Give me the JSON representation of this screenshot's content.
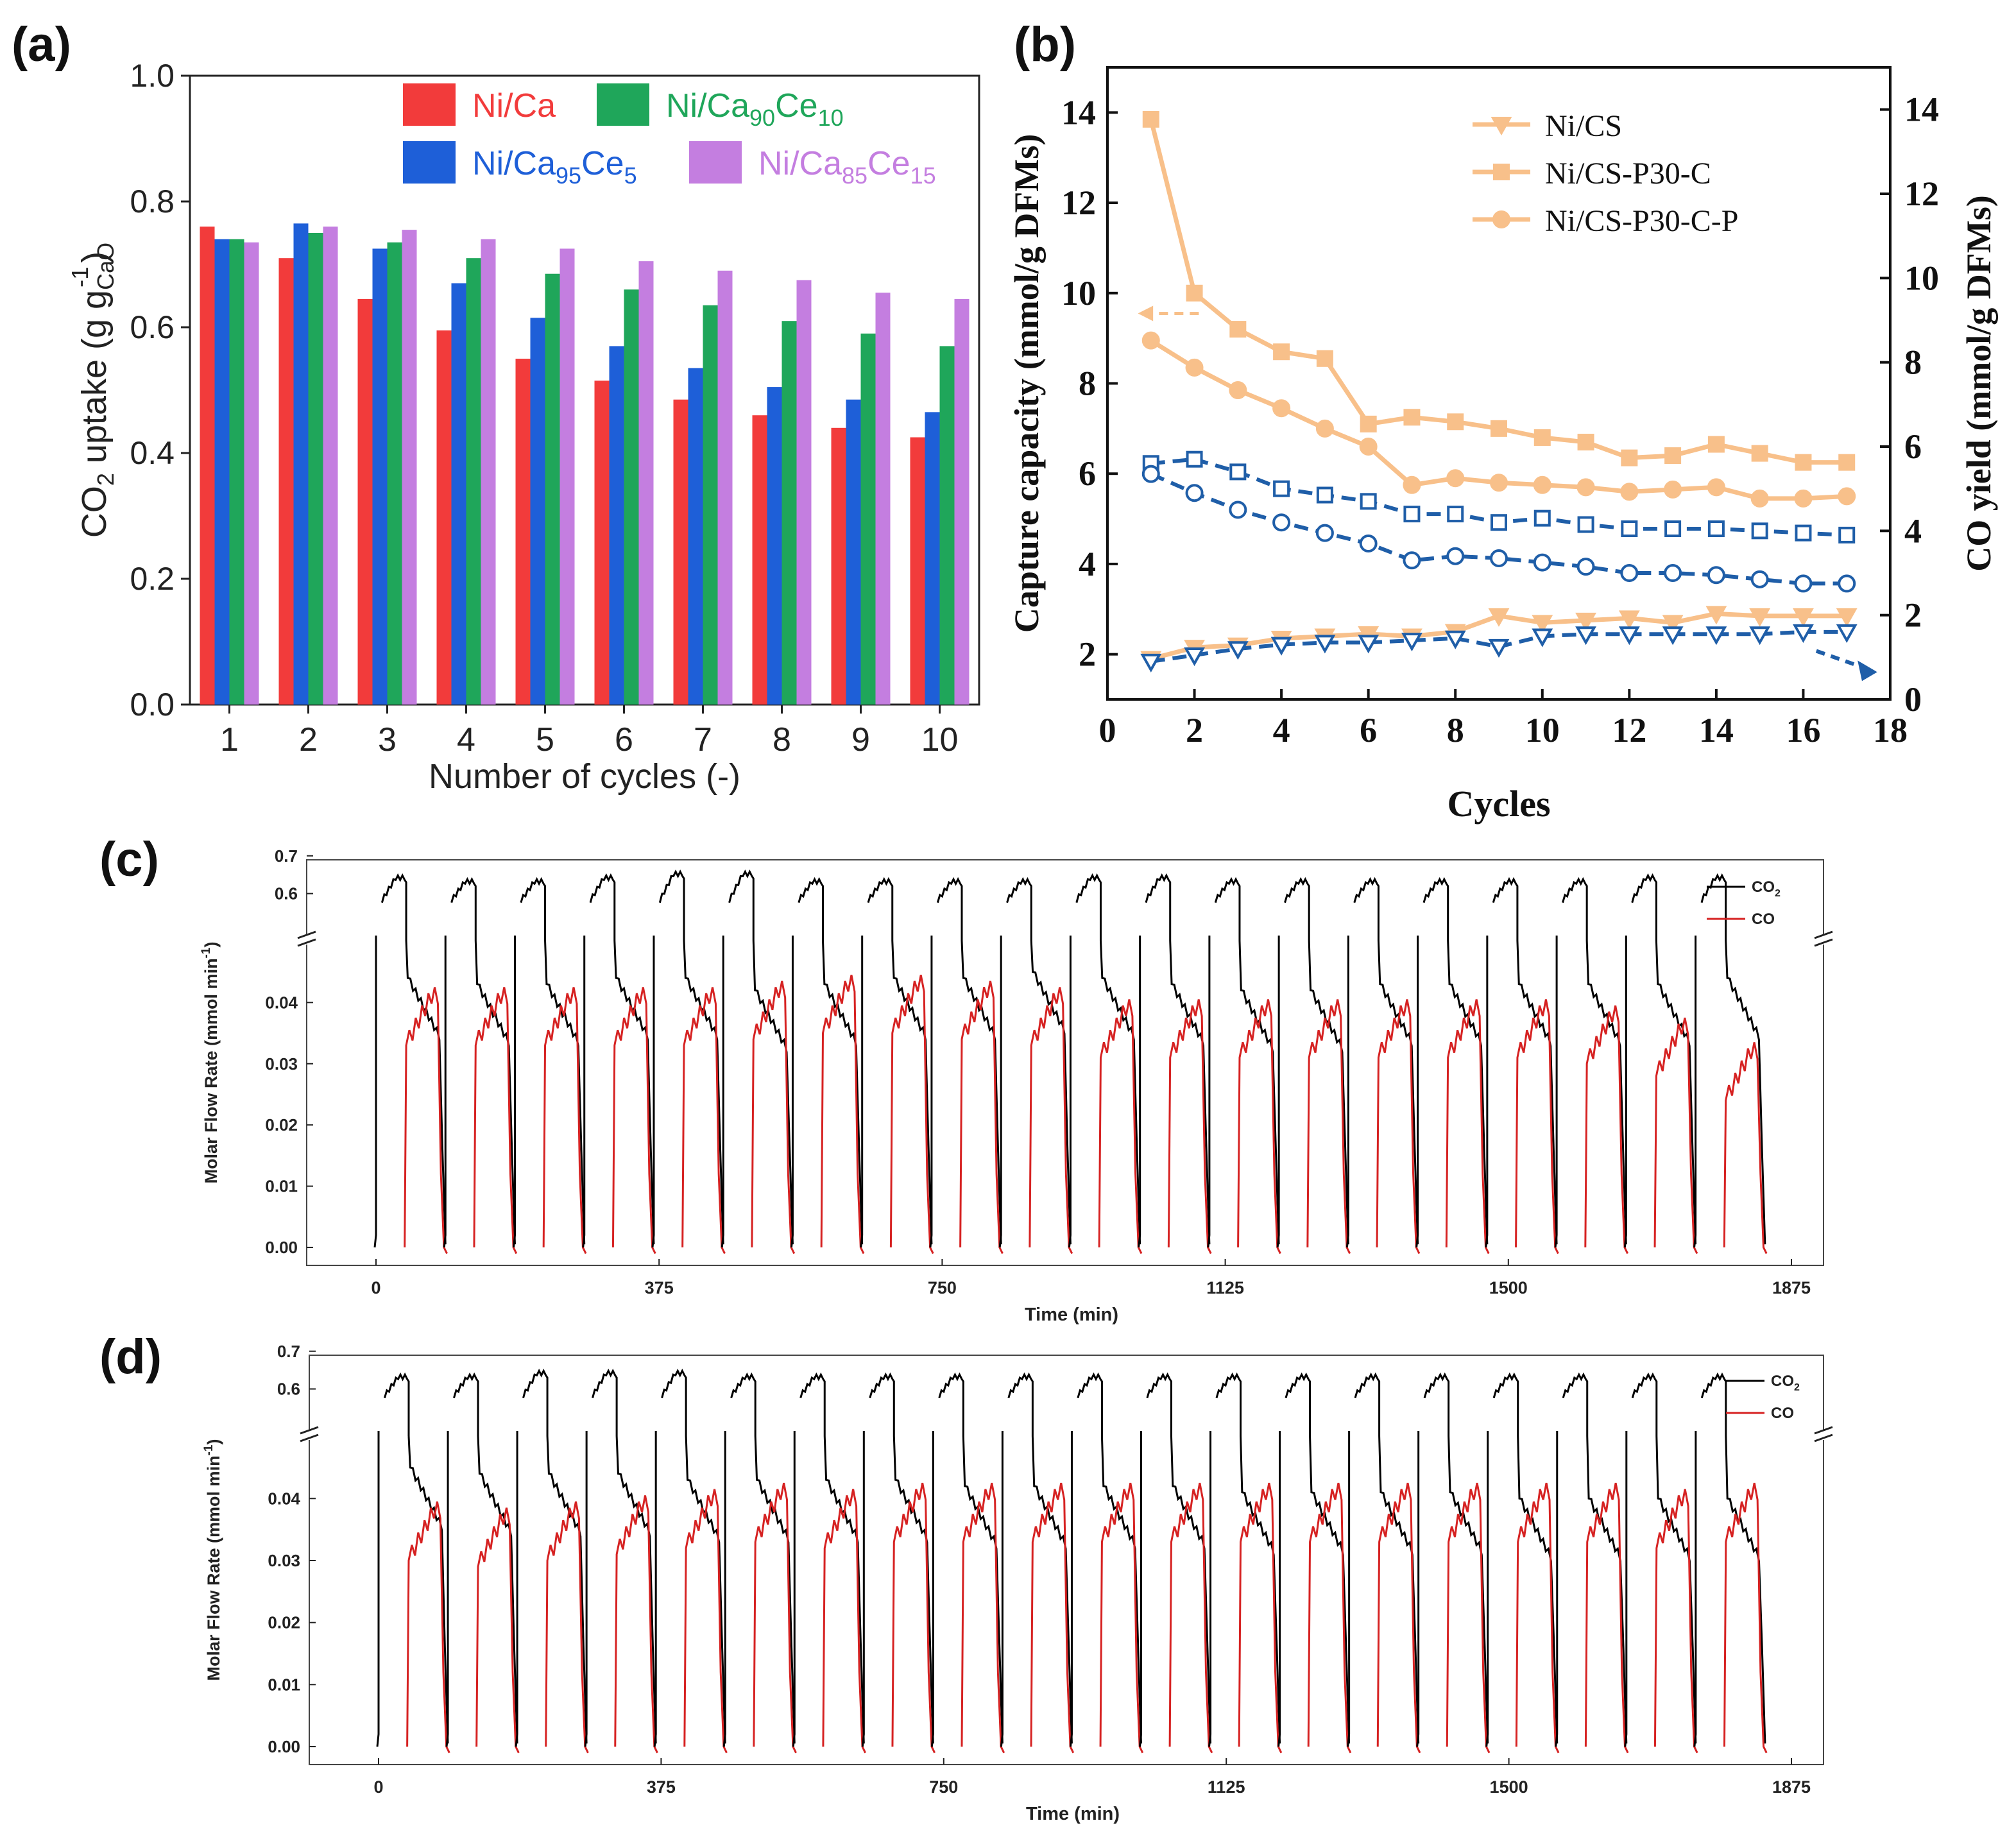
{
  "figure": {
    "panel_labels": [
      "(a)",
      "(b)",
      "(c)",
      "(d)"
    ]
  },
  "colors": {
    "ni_ca": "#f23b3b",
    "ni_ca95ce5": "#1e5fd8",
    "ni_ca90ce10": "#1fa65a",
    "ni_ca85ce15": "#c47ee0",
    "orange": "#f8c08a",
    "blue": "#1f5ea8",
    "co2_line": "#000000",
    "co_line": "#d62222"
  },
  "chart_data": [
    {
      "panel": "(a)",
      "type": "bar",
      "title": "",
      "xlabel": "Number of cycles (-)",
      "ylabel": "CO2 uptake (g g-1 CaO)",
      "ylim": [
        0.0,
        1.0
      ],
      "yticks": [
        "0.0",
        "0.2",
        "0.4",
        "0.6",
        "0.8",
        "1.0"
      ],
      "categories": [
        "1",
        "2",
        "3",
        "4",
        "5",
        "6",
        "7",
        "8",
        "9",
        "10"
      ],
      "legend_position": "top",
      "series": [
        {
          "name": "Ni/Ca",
          "color_key": "ni_ca",
          "values": [
            0.76,
            0.71,
            0.645,
            0.595,
            0.55,
            0.515,
            0.485,
            0.46,
            0.44,
            0.425
          ]
        },
        {
          "name": "Ni/Ca95Ce5",
          "color_key": "ni_ca95ce5",
          "values": [
            0.74,
            0.765,
            0.725,
            0.67,
            0.615,
            0.57,
            0.535,
            0.505,
            0.485,
            0.465
          ]
        },
        {
          "name": "Ni/Ca90Ce10",
          "color_key": "ni_ca90ce10",
          "values": [
            0.74,
            0.75,
            0.735,
            0.71,
            0.685,
            0.66,
            0.635,
            0.61,
            0.59,
            0.57
          ]
        },
        {
          "name": "Ni/Ca85Ce15",
          "color_key": "ni_ca85ce15",
          "values": [
            0.735,
            0.76,
            0.755,
            0.74,
            0.725,
            0.705,
            0.69,
            0.675,
            0.655,
            0.645
          ]
        }
      ],
      "legend": [
        {
          "main": "Ni/Ca",
          "sub": "",
          "tail": "",
          "sub2": "",
          "color_key": "ni_ca"
        },
        {
          "main": "Ni/Ca",
          "sub": "90",
          "tail": "Ce",
          "sub2": "10",
          "color_key": "ni_ca90ce10"
        },
        {
          "main": "Ni/Ca",
          "sub": "95",
          "tail": "Ce",
          "sub2": "5",
          "color_key": "ni_ca95ce5"
        },
        {
          "main": "Ni/Ca",
          "sub": "85",
          "tail": "Ce",
          "sub2": "15",
          "color_key": "ni_ca85ce15"
        }
      ]
    },
    {
      "panel": "(b)",
      "type": "line",
      "title": "",
      "xlabel": "Cycles",
      "ylabel_left": "Capture capacity (mmol/g DFMs)",
      "ylabel_right": "CO yield (mmol/g DFMs)",
      "xlim": [
        0,
        18
      ],
      "ylim_left": [
        1,
        15
      ],
      "ylim_right": [
        0,
        15
      ],
      "xticks": [
        "0",
        "2",
        "4",
        "6",
        "8",
        "10",
        "12",
        "14",
        "16",
        "18"
      ],
      "yticks_left": [
        "2",
        "4",
        "6",
        "8",
        "10",
        "12",
        "14"
      ],
      "yticks_right": [
        "0",
        "2",
        "4",
        "6",
        "8",
        "10",
        "12",
        "14"
      ],
      "legend_position": "top-right",
      "x": [
        1,
        2,
        3,
        4,
        5,
        6,
        7,
        8,
        9,
        10,
        11,
        12,
        13,
        14,
        15,
        16,
        17
      ],
      "series": [
        {
          "name": "Ni/CS",
          "axis": "left",
          "marker": "triangle-down",
          "filled": true,
          "color_key": "orange",
          "dashed": false,
          "values": [
            1.9,
            2.15,
            2.2,
            2.35,
            2.4,
            2.45,
            2.4,
            2.5,
            2.85,
            2.7,
            2.75,
            2.8,
            2.7,
            2.9,
            2.85,
            2.85,
            2.85
          ]
        },
        {
          "name": "Ni/CS-P30-C",
          "axis": "left",
          "marker": "square",
          "filled": true,
          "color_key": "orange",
          "dashed": false,
          "values": [
            13.85,
            10.0,
            9.2,
            8.7,
            8.55,
            7.1,
            7.25,
            7.15,
            7.0,
            6.8,
            6.7,
            6.35,
            6.4,
            6.65,
            6.45,
            6.25,
            6.25
          ]
        },
        {
          "name": "Ni/CS-P30-C-P",
          "axis": "left",
          "marker": "circle",
          "filled": true,
          "color_key": "orange",
          "dashed": false,
          "values": [
            8.95,
            8.35,
            7.85,
            7.45,
            7.0,
            6.6,
            5.75,
            5.9,
            5.8,
            5.75,
            5.7,
            5.6,
            5.65,
            5.7,
            5.45,
            5.45,
            5.5
          ]
        },
        {
          "name": "Ni/CS CO yield",
          "axis": "right",
          "marker": "triangle-down",
          "filled": false,
          "color_key": "blue",
          "dashed": true,
          "values": [
            0.9,
            1.05,
            1.2,
            1.3,
            1.35,
            1.35,
            1.4,
            1.45,
            1.25,
            1.5,
            1.55,
            1.55,
            1.55,
            1.55,
            1.55,
            1.6,
            1.6
          ]
        },
        {
          "name": "Ni/CS-P30-C CO yield",
          "axis": "right",
          "marker": "square",
          "filled": false,
          "color_key": "blue",
          "dashed": true,
          "values": [
            5.6,
            5.7,
            5.4,
            5.0,
            4.85,
            4.7,
            4.4,
            4.4,
            4.2,
            4.3,
            4.15,
            4.05,
            4.05,
            4.05,
            4.0,
            3.95,
            3.9
          ]
        },
        {
          "name": "Ni/CS-P30-C-P CO yield",
          "axis": "right",
          "marker": "circle",
          "filled": false,
          "color_key": "blue",
          "dashed": true,
          "values": [
            5.35,
            4.9,
            4.5,
            4.2,
            3.95,
            3.7,
            3.3,
            3.4,
            3.35,
            3.25,
            3.15,
            3.0,
            3.0,
            2.95,
            2.85,
            2.75,
            2.75
          ]
        }
      ],
      "legend": [
        "Ni/CS",
        "Ni/CS-P30-C",
        "Ni/CS-P30-C-P"
      ]
    },
    {
      "panel": "(c)",
      "type": "line",
      "title": "",
      "xlabel": "Time (min)",
      "ylabel": "Molar Flow Rate (mmol min-1)",
      "xlim": [
        0,
        1875
      ],
      "xticks": [
        "0",
        "375",
        "750",
        "1125",
        "1500",
        "1875"
      ],
      "yticks_low": [
        "0.00",
        "0.01",
        "0.02",
        "0.03",
        "0.04"
      ],
      "yticks_high": [
        "0.6",
        "0.7"
      ],
      "y_break": [
        0.05,
        0.55
      ],
      "cycle_starts": [
        0,
        92,
        184,
        276,
        368,
        460,
        552,
        644,
        736,
        828,
        920,
        1012,
        1104,
        1196,
        1288,
        1380,
        1472,
        1564,
        1656,
        1748
      ],
      "legend_position": "top-right",
      "series": [
        {
          "name": "CO2",
          "color_key": "co2_line",
          "cycle_peak_values": [
            0.64,
            0.63,
            0.63,
            0.64,
            0.65,
            0.65,
            0.63,
            0.63,
            0.63,
            0.63,
            0.64,
            0.64,
            0.63,
            0.63,
            0.63,
            0.63,
            0.63,
            0.63,
            0.64,
            0.64
          ],
          "plateau_values": [
            0.044,
            0.043,
            0.043,
            0.044,
            0.044,
            0.042,
            0.043,
            0.044,
            0.044,
            0.045,
            0.044,
            0.043,
            0.042,
            0.042,
            0.043,
            0.043,
            0.043,
            0.043,
            0.043,
            0.044
          ]
        },
        {
          "name": "CO",
          "color_key": "co_line",
          "cycle_peak_values": [
            0.041,
            0.041,
            0.041,
            0.041,
            0.041,
            0.042,
            0.043,
            0.043,
            0.042,
            0.041,
            0.039,
            0.039,
            0.039,
            0.039,
            0.039,
            0.039,
            0.039,
            0.038,
            0.036,
            0.032
          ]
        }
      ],
      "legend": [
        "CO2",
        "CO"
      ]
    },
    {
      "panel": "(d)",
      "type": "line",
      "title": "",
      "xlabel": "Time (min)",
      "ylabel": "Molar Flow Rate (mmol min-1)",
      "xlim": [
        0,
        1875
      ],
      "xticks": [
        "0",
        "375",
        "750",
        "1125",
        "1500",
        "1875"
      ],
      "yticks_low": [
        "0.00",
        "0.01",
        "0.02",
        "0.03",
        "0.04"
      ],
      "yticks_high": [
        "0.6",
        "0.7"
      ],
      "y_break": [
        0.05,
        0.55
      ],
      "cycle_starts": [
        0,
        92,
        184,
        276,
        368,
        460,
        552,
        644,
        736,
        828,
        920,
        1012,
        1104,
        1196,
        1288,
        1380,
        1472,
        1564,
        1656,
        1748
      ],
      "legend_position": "top-right",
      "series": [
        {
          "name": "CO2",
          "color_key": "co2_line",
          "cycle_peak_values": [
            0.63,
            0.63,
            0.64,
            0.64,
            0.64,
            0.63,
            0.63,
            0.63,
            0.63,
            0.63,
            0.63,
            0.63,
            0.63,
            0.63,
            0.63,
            0.63,
            0.63,
            0.63,
            0.63,
            0.63
          ],
          "plateau_values": [
            0.045,
            0.044,
            0.044,
            0.044,
            0.043,
            0.043,
            0.043,
            0.043,
            0.042,
            0.042,
            0.042,
            0.042,
            0.041,
            0.041,
            0.041,
            0.041,
            0.04,
            0.04,
            0.04,
            0.04
          ]
        },
        {
          "name": "CO",
          "color_key": "co_line",
          "cycle_peak_values": [
            0.038,
            0.037,
            0.038,
            0.039,
            0.04,
            0.041,
            0.04,
            0.041,
            0.041,
            0.041,
            0.041,
            0.041,
            0.041,
            0.041,
            0.041,
            0.041,
            0.041,
            0.041,
            0.04,
            0.041
          ]
        }
      ],
      "legend": [
        "CO2",
        "CO"
      ]
    }
  ]
}
